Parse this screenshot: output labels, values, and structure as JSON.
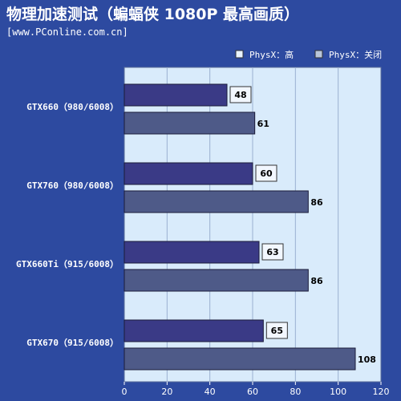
{
  "header": {
    "title": "物理加速测试（蝙蝠侠 1080P 最高画质）",
    "source": "[www.PConline.com.cn]"
  },
  "colors": {
    "background": "#2d4aa0",
    "plot_area": "#d9ebfb",
    "grid": "#9bb0d0",
    "series_high": "#3a3a86",
    "series_off": "#4e5a88"
  },
  "chart_data": {
    "type": "bar",
    "orientation": "horizontal",
    "title": "物理加速测试（蝙蝠侠 1080P 最高画质）",
    "categories": [
      "GTX660（980/6008）",
      "GTX760（980/6008）",
      "GTX660Ti（915/6008）",
      "GTX670（915/6008）"
    ],
    "series": [
      {
        "name": "PhysX：高",
        "values": [
          48,
          60,
          63,
          65
        ]
      },
      {
        "name": "PhysX：关闭",
        "values": [
          61,
          86,
          86,
          108
        ]
      }
    ],
    "xlim": [
      0,
      120
    ],
    "xticks": [
      0,
      20,
      40,
      60,
      80,
      100,
      120
    ],
    "grid": true,
    "legend_position": "top-right"
  }
}
